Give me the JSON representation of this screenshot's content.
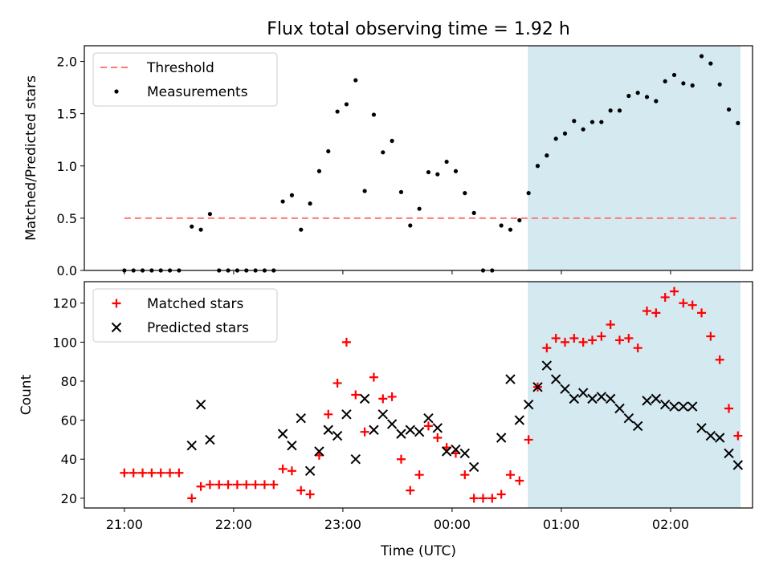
{
  "chart_data": {
    "type": "scatter",
    "title": "Flux total observing time = 1.92 h",
    "xlabel": "Time (UTC)",
    "x_ticks": [
      "21:00",
      "22:00",
      "23:00",
      "00:00",
      "01:00",
      "02:00"
    ],
    "shaded_interval": [
      "00:42",
      "02:38"
    ],
    "shade_color": "#d4e9f0",
    "panels": [
      {
        "ylabel": "Matched/Predicted stars",
        "ylim": [
          0,
          2.15
        ],
        "y_ticks": [
          "0.0",
          "0.5",
          "1.0",
          "1.5",
          "2.0"
        ],
        "legend": {
          "position": "top-left",
          "entries": [
            "Threshold",
            "Measurements"
          ]
        },
        "threshold": {
          "name": "Threshold",
          "value": 0.5,
          "x_start": "21:00",
          "x_end": "02:38",
          "color": "#ff7878"
        },
        "series": [
          {
            "name": "Measurements",
            "marker": "dot",
            "color": "#000000",
            "points": [
              [
                "21:00",
                0
              ],
              [
                "21:05",
                0
              ],
              [
                "21:10",
                0
              ],
              [
                "21:15",
                0
              ],
              [
                "21:20",
                0
              ],
              [
                "21:25",
                0
              ],
              [
                "21:30",
                0
              ],
              [
                "21:37",
                0.42
              ],
              [
                "21:42",
                0.39
              ],
              [
                "21:47",
                0.54
              ],
              [
                "21:52",
                0
              ],
              [
                "21:57",
                0
              ],
              [
                "22:02",
                0
              ],
              [
                "22:07",
                0
              ],
              [
                "22:12",
                0
              ],
              [
                "22:17",
                0
              ],
              [
                "22:22",
                0
              ],
              [
                "22:27",
                0.66
              ],
              [
                "22:32",
                0.72
              ],
              [
                "22:37",
                0.39
              ],
              [
                "22:42",
                0.64
              ],
              [
                "22:47",
                0.95
              ],
              [
                "22:52",
                1.14
              ],
              [
                "22:57",
                1.52
              ],
              [
                "23:02",
                1.59
              ],
              [
                "23:07",
                1.82
              ],
              [
                "23:12",
                0.76
              ],
              [
                "23:17",
                1.49
              ],
              [
                "23:22",
                1.13
              ],
              [
                "23:27",
                1.24
              ],
              [
                "23:32",
                0.75
              ],
              [
                "23:37",
                0.43
              ],
              [
                "23:42",
                0.59
              ],
              [
                "23:47",
                0.94
              ],
              [
                "23:52",
                0.92
              ],
              [
                "23:57",
                1.04
              ],
              [
                "00:02",
                0.95
              ],
              [
                "00:07",
                0.74
              ],
              [
                "00:12",
                0.55
              ],
              [
                "00:17",
                0
              ],
              [
                "00:22",
                0
              ],
              [
                "00:27",
                0.43
              ],
              [
                "00:32",
                0.39
              ],
              [
                "00:37",
                0.48
              ],
              [
                "00:42",
                0.74
              ],
              [
                "00:47",
                1.0
              ],
              [
                "00:52",
                1.1
              ],
              [
                "00:57",
                1.26
              ],
              [
                "01:02",
                1.31
              ],
              [
                "01:07",
                1.43
              ],
              [
                "01:12",
                1.35
              ],
              [
                "01:17",
                1.42
              ],
              [
                "01:22",
                1.42
              ],
              [
                "01:27",
                1.53
              ],
              [
                "01:32",
                1.53
              ],
              [
                "01:37",
                1.67
              ],
              [
                "01:42",
                1.7
              ],
              [
                "01:47",
                1.66
              ],
              [
                "01:52",
                1.62
              ],
              [
                "01:57",
                1.81
              ],
              [
                "02:02",
                1.87
              ],
              [
                "02:07",
                1.79
              ],
              [
                "02:12",
                1.77
              ],
              [
                "02:17",
                2.05
              ],
              [
                "02:22",
                1.98
              ],
              [
                "02:27",
                1.78
              ],
              [
                "02:32",
                1.54
              ],
              [
                "02:37",
                1.41
              ]
            ]
          }
        ]
      },
      {
        "ylabel": "Count",
        "ylim": [
          15,
          131
        ],
        "y_ticks": [
          "20",
          "40",
          "60",
          "80",
          "100",
          "120"
        ],
        "legend": {
          "position": "top-left",
          "entries": [
            "Matched stars",
            "Predicted stars"
          ]
        },
        "series": [
          {
            "name": "Matched stars",
            "marker": "plus",
            "color": "#ff0000",
            "points": [
              [
                "21:00",
                33
              ],
              [
                "21:05",
                33
              ],
              [
                "21:10",
                33
              ],
              [
                "21:15",
                33
              ],
              [
                "21:20",
                33
              ],
              [
                "21:25",
                33
              ],
              [
                "21:30",
                33
              ],
              [
                "21:37",
                20
              ],
              [
                "21:42",
                26
              ],
              [
                "21:47",
                27
              ],
              [
                "21:52",
                27
              ],
              [
                "21:57",
                27
              ],
              [
                "22:02",
                27
              ],
              [
                "22:07",
                27
              ],
              [
                "22:12",
                27
              ],
              [
                "22:17",
                27
              ],
              [
                "22:22",
                27
              ],
              [
                "22:27",
                35
              ],
              [
                "22:32",
                34
              ],
              [
                "22:37",
                24
              ],
              [
                "22:42",
                22
              ],
              [
                "22:47",
                42
              ],
              [
                "22:52",
                63
              ],
              [
                "22:57",
                79
              ],
              [
                "23:02",
                100
              ],
              [
                "23:07",
                73
              ],
              [
                "23:12",
                54
              ],
              [
                "23:17",
                82
              ],
              [
                "23:22",
                71
              ],
              [
                "23:27",
                72
              ],
              [
                "23:32",
                40
              ],
              [
                "23:37",
                24
              ],
              [
                "23:42",
                32
              ],
              [
                "23:47",
                57
              ],
              [
                "23:52",
                51
              ],
              [
                "23:57",
                46
              ],
              [
                "00:02",
                43
              ],
              [
                "00:07",
                32
              ],
              [
                "00:12",
                20
              ],
              [
                "00:17",
                20
              ],
              [
                "00:22",
                20
              ],
              [
                "00:27",
                22
              ],
              [
                "00:32",
                32
              ],
              [
                "00:37",
                29
              ],
              [
                "00:42",
                50
              ],
              [
                "00:47",
                77
              ],
              [
                "00:52",
                97
              ],
              [
                "00:57",
                102
              ],
              [
                "01:02",
                100
              ],
              [
                "01:07",
                102
              ],
              [
                "01:12",
                100
              ],
              [
                "01:17",
                101
              ],
              [
                "01:22",
                103
              ],
              [
                "01:27",
                109
              ],
              [
                "01:32",
                101
              ],
              [
                "01:37",
                102
              ],
              [
                "01:42",
                97
              ],
              [
                "01:47",
                116
              ],
              [
                "01:52",
                115
              ],
              [
                "01:57",
                123
              ],
              [
                "02:02",
                126
              ],
              [
                "02:07",
                120
              ],
              [
                "02:12",
                119
              ],
              [
                "02:17",
                115
              ],
              [
                "02:22",
                103
              ],
              [
                "02:27",
                91
              ],
              [
                "02:32",
                66
              ],
              [
                "02:37",
                52
              ]
            ]
          },
          {
            "name": "Predicted stars",
            "marker": "x",
            "color": "#000000",
            "points": [
              [
                "21:37",
                47
              ],
              [
                "21:42",
                68
              ],
              [
                "21:47",
                50
              ],
              [
                "22:27",
                53
              ],
              [
                "22:32",
                47
              ],
              [
                "22:37",
                61
              ],
              [
                "22:42",
                34
              ],
              [
                "22:47",
                44
              ],
              [
                "22:52",
                55
              ],
              [
                "22:57",
                52
              ],
              [
                "23:02",
                63
              ],
              [
                "23:07",
                40
              ],
              [
                "23:12",
                71
              ],
              [
                "23:17",
                55
              ],
              [
                "23:22",
                63
              ],
              [
                "23:27",
                58
              ],
              [
                "23:32",
                53
              ],
              [
                "23:37",
                55
              ],
              [
                "23:42",
                54
              ],
              [
                "23:47",
                61
              ],
              [
                "23:52",
                56
              ],
              [
                "23:57",
                44
              ],
              [
                "00:02",
                45
              ],
              [
                "00:07",
                43
              ],
              [
                "00:12",
                36
              ],
              [
                "00:27",
                51
              ],
              [
                "00:32",
                81
              ],
              [
                "00:37",
                60
              ],
              [
                "00:42",
                68
              ],
              [
                "00:47",
                77
              ],
              [
                "00:52",
                88
              ],
              [
                "00:57",
                81
              ],
              [
                "01:02",
                76
              ],
              [
                "01:07",
                71
              ],
              [
                "01:12",
                74
              ],
              [
                "01:17",
                71
              ],
              [
                "01:22",
                72
              ],
              [
                "01:27",
                71
              ],
              [
                "01:32",
                66
              ],
              [
                "01:37",
                61
              ],
              [
                "01:42",
                57
              ],
              [
                "01:47",
                70
              ],
              [
                "01:52",
                71
              ],
              [
                "01:57",
                68
              ],
              [
                "02:02",
                67
              ],
              [
                "02:07",
                67
              ],
              [
                "02:12",
                67
              ],
              [
                "02:17",
                56
              ],
              [
                "02:22",
                52
              ],
              [
                "02:27",
                51
              ],
              [
                "02:32",
                43
              ],
              [
                "02:37",
                37
              ]
            ]
          }
        ]
      }
    ]
  }
}
